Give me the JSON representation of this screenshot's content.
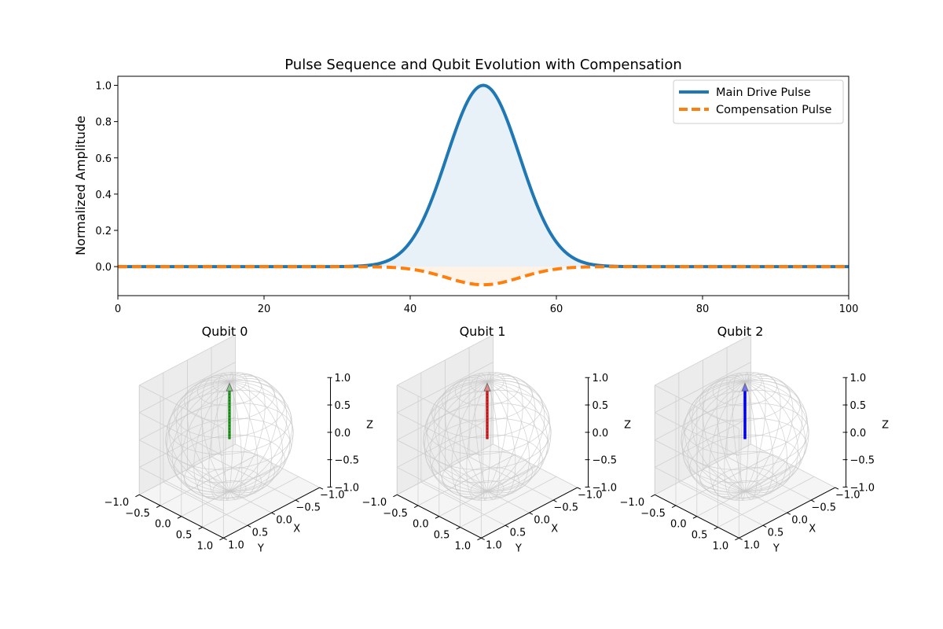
{
  "colors": {
    "main": "#1f77b4",
    "comp": "#ff7f0e",
    "qubit0": "#2ca02c",
    "qubit1": "#d62728",
    "qubit2": "#0000ff",
    "sphere": "#c8c8c8",
    "pane": "#f2f2f2",
    "grid": "#d0d0d0"
  },
  "chart_data": [
    {
      "type": "line",
      "title": "Pulse Sequence and Qubit Evolution with Compensation",
      "xlabel": "",
      "ylabel": "Normalized Amplitude",
      "xlim": [
        0,
        100
      ],
      "ylim": [
        -0.16,
        1.05
      ],
      "xticks": [
        "0",
        "20",
        "40",
        "60",
        "80",
        "100"
      ],
      "yticks": [
        "0.0",
        "0.2",
        "0.4",
        "0.6",
        "0.8",
        "1.0"
      ],
      "legend": "top-right",
      "series": [
        {
          "name": "Main Drive Pulse",
          "kind": "gaussian",
          "center": 50,
          "sigma": 5,
          "amplitude": 1.0,
          "style": "solid",
          "fill": true
        },
        {
          "name": "Compensation Pulse",
          "kind": "gaussian",
          "center": 50,
          "sigma": 5,
          "amplitude": -0.1,
          "style": "dashed",
          "fill": true
        }
      ]
    },
    {
      "type": "bloch-sphere",
      "title": "Qubit 0",
      "xlabel": "X",
      "ylabel": "Y",
      "zlabel": "Z",
      "xticks": [
        "−1.0",
        "−0.5",
        "0.0",
        "0.5",
        "1.0"
      ],
      "yticks": [
        "−1.0",
        "−0.5",
        "0.0",
        "0.5",
        "1.0"
      ],
      "zticks": [
        "−1.0",
        "−0.5",
        "0.0",
        "0.5",
        "1.0"
      ],
      "vector": {
        "x": 0,
        "y": 0,
        "z": 1
      },
      "color_key": "qubit0"
    },
    {
      "type": "bloch-sphere",
      "title": "Qubit 1",
      "xlabel": "X",
      "ylabel": "Y",
      "zlabel": "Z",
      "xticks": [
        "−1.0",
        "−0.5",
        "0.0",
        "0.5",
        "1.0"
      ],
      "yticks": [
        "−1.0",
        "−0.5",
        "0.0",
        "0.5",
        "1.0"
      ],
      "zticks": [
        "−1.0",
        "−0.5",
        "0.0",
        "0.5",
        "1.0"
      ],
      "vector": {
        "x": 0,
        "y": 0,
        "z": 1
      },
      "color_key": "qubit1"
    },
    {
      "type": "bloch-sphere",
      "title": "Qubit 2",
      "xlabel": "X",
      "ylabel": "Y",
      "zlabel": "Z",
      "xticks": [
        "−1.0",
        "−0.5",
        "0.0",
        "0.5",
        "1.0"
      ],
      "yticks": [
        "−1.0",
        "−0.5",
        "0.0",
        "0.5",
        "1.0"
      ],
      "zticks": [
        "−1.0",
        "−0.5",
        "0.0",
        "0.5",
        "1.0"
      ],
      "vector": {
        "x": 0,
        "y": 0,
        "z": 1
      },
      "color_key": "qubit2"
    }
  ]
}
